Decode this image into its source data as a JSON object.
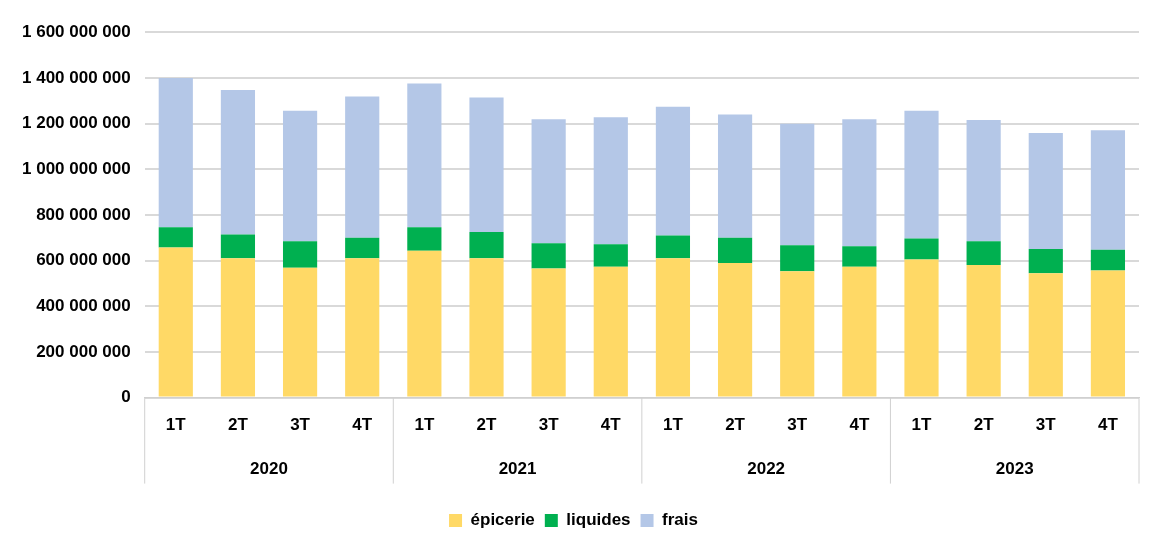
{
  "chart_data": {
    "type": "bar",
    "stacked": true,
    "categories": [
      "1T",
      "2T",
      "3T",
      "4T",
      "1T",
      "2T",
      "3T",
      "4T",
      "1T",
      "2T",
      "3T",
      "4T",
      "1T",
      "2T",
      "3T",
      "4T"
    ],
    "series": [
      {
        "name": "épicerie",
        "color": "#ffd966",
        "values": [
          657000000,
          610000000,
          569000000,
          610000000,
          643000000,
          610000000,
          565000000,
          573000000,
          610000000,
          589000000,
          553000000,
          573000000,
          605000000,
          581000000,
          544000000,
          557000000
        ]
      },
      {
        "name": "liquides",
        "color": "#00b050",
        "values": [
          89000000,
          104000000,
          116000000,
          90000000,
          103000000,
          115000000,
          111000000,
          99000000,
          100000000,
          111000000,
          114000000,
          90000000,
          92000000,
          104000000,
          107000000,
          90000000
        ]
      },
      {
        "name": "frais",
        "color": "#b4c7e7",
        "values": [
          654000000,
          633000000,
          571000000,
          618000000,
          629000000,
          589000000,
          543000000,
          556000000,
          564000000,
          540000000,
          532000000,
          556000000,
          559000000,
          531000000,
          508000000,
          524000000
        ]
      }
    ],
    "ylim": [
      0,
      1600000000
    ],
    "yticks": [
      0,
      {
        "value": 200000000,
        "label": "200 000 000"
      },
      {
        "value": 400000000,
        "label": "400 000 000"
      },
      {
        "value": 600000000,
        "label": "600 000 000"
      },
      {
        "value": 800000000,
        "label": "800 000 000"
      },
      {
        "value": 1000000000,
        "label": "1 000 000 000"
      },
      {
        "value": 1200000000,
        "label": "1 200 000 000"
      },
      {
        "value": 1400000000,
        "label": "1 400 000 000"
      },
      {
        "value": 1600000000,
        "label": "1 600 000 000"
      }
    ],
    "annotations": [
      "2020",
      "2021",
      "2022",
      "2023"
    ],
    "grid": "y",
    "legend": "bottom"
  }
}
